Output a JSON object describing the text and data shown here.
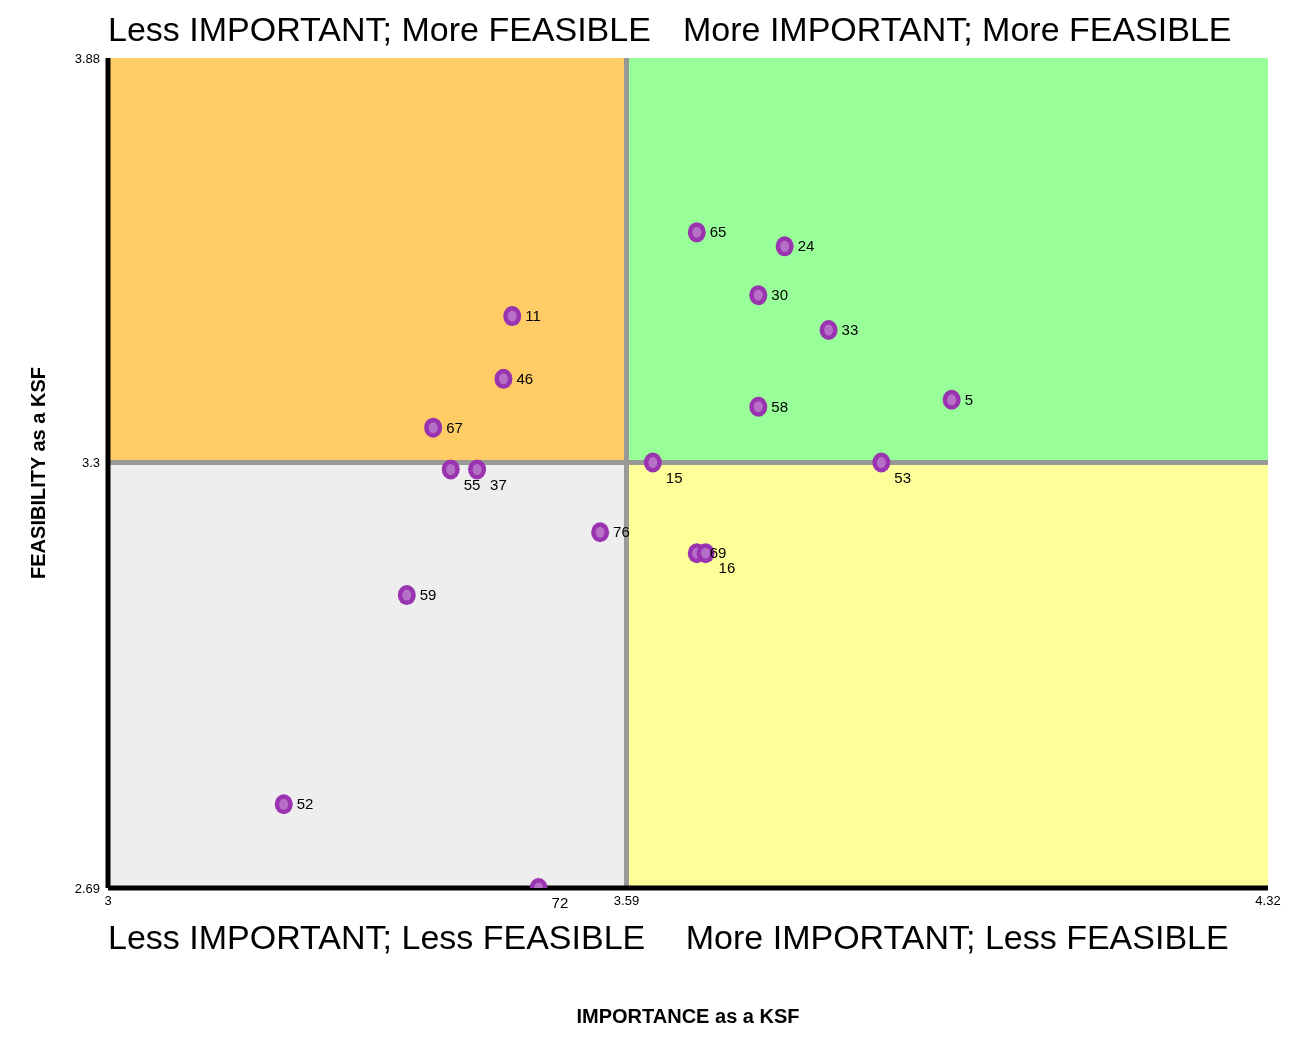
{
  "chart_data": {
    "type": "scatter",
    "xlabel": "IMPORTANCE as a KSF",
    "ylabel": "FEASIBILITY as a KSF",
    "annotations": [
      "Less IMPORTANT; More FEASIBLE",
      "More IMPORTANT; More FEASIBLE",
      "Less IMPORTANT; Less FEASIBLE",
      "More IMPORTANT; Less FEASIBLE",
      {
        "text": "65",
        "x": 3.67,
        "y": 3.63
      },
      {
        "text": "24",
        "x": 3.77,
        "y": 3.61
      },
      {
        "text": "30",
        "x": 3.74,
        "y": 3.54
      },
      {
        "text": "33",
        "x": 3.82,
        "y": 3.49
      },
      {
        "text": "11",
        "x": 3.46,
        "y": 3.51
      },
      {
        "text": "46",
        "x": 3.45,
        "y": 3.42
      },
      {
        "text": "67",
        "x": 3.37,
        "y": 3.35
      },
      {
        "text": "58",
        "x": 3.74,
        "y": 3.38
      },
      {
        "text": "5",
        "x": 3.96,
        "y": 3.39
      },
      {
        "text": "15",
        "x": 3.62,
        "y": 3.3
      },
      {
        "text": "53",
        "x": 3.88,
        "y": 3.3
      },
      {
        "text": "55",
        "x": 3.39,
        "y": 3.29
      },
      {
        "text": "37",
        "x": 3.42,
        "y": 3.29
      },
      {
        "text": "76",
        "x": 3.56,
        "y": 3.2
      },
      {
        "text": "69",
        "x": 3.67,
        "y": 3.17
      },
      {
        "text": "16",
        "x": 3.68,
        "y": 3.17
      },
      {
        "text": "59",
        "x": 3.34,
        "y": 3.11
      },
      {
        "text": "52",
        "x": 3.2,
        "y": 2.81
      },
      {
        "text": "72",
        "x": 3.49,
        "y": 2.69
      }
    ],
    "x": [
      3.67,
      3.77,
      3.74,
      3.82,
      3.46,
      3.45,
      3.37,
      3.74,
      3.96,
      3.62,
      3.88,
      3.39,
      3.42,
      3.56,
      3.67,
      3.68,
      3.34,
      3.2,
      3.49
    ],
    "series": [
      {
        "color": "#9933b0",
        "values": [
          3.63,
          3.61,
          3.54,
          3.49,
          3.51,
          3.42,
          3.35,
          3.38,
          3.39,
          3.3,
          3.3,
          3.29,
          3.29,
          3.2,
          3.17,
          3.17,
          3.11,
          2.81,
          2.69
        ]
      }
    ],
    "xlim": [
      3,
      4.32
    ],
    "xticks": [
      3,
      3.59,
      4.32
    ],
    "ylim": [
      2.69,
      3.88
    ],
    "yticks": [
      2.69,
      3.3,
      3.88
    ],
    "ref_lines": [
      {
        "axis": "x",
        "value": 3.59,
        "color": "#999999"
      },
      {
        "axis": "y",
        "value": 3.3,
        "color": "#999999"
      }
    ],
    "marker": "circle",
    "grid": false,
    "legend": false
  }
}
